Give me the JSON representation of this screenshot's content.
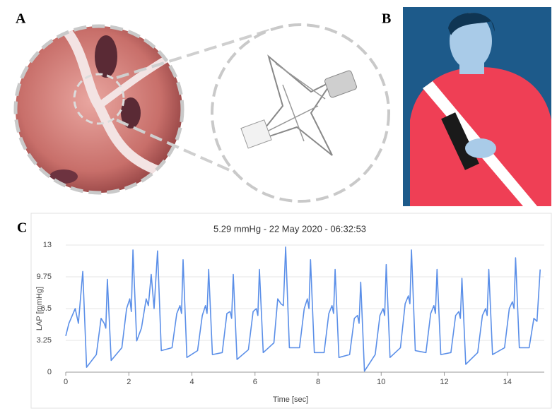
{
  "panels": {
    "a": "A",
    "b": "B",
    "c": "C"
  },
  "chart_data": {
    "type": "line",
    "title": "5.29 mmHg - 22 May 2020 - 06:32:53",
    "x_label": "Time [sec]",
    "y_label": "LAP [mmHg]",
    "xlim": [
      0,
      15.17
    ],
    "ylim": [
      0,
      13
    ],
    "xticks": [
      0,
      2,
      4,
      6,
      8,
      10,
      12,
      14
    ],
    "yticks": [
      0,
      3.25,
      6.5,
      9.75,
      13
    ],
    "grid": true,
    "series": [
      {
        "name": "LAP",
        "color": "#5b8fe8",
        "x": [
          0,
          0.1,
          0.3,
          0.4,
          0.54,
          0.66,
          0.97,
          1.12,
          1.22,
          1.27,
          1.32,
          1.44,
          1.78,
          1.93,
          2.03,
          2.08,
          2.13,
          2.25,
          2.4,
          2.55,
          2.62,
          2.71,
          2.8,
          2.91,
          3.03,
          3.37,
          3.52,
          3.62,
          3.67,
          3.72,
          3.84,
          4.18,
          4.33,
          4.43,
          4.48,
          4.53,
          4.65,
          4.96,
          5.11,
          5.21,
          5.26,
          5.31,
          5.43,
          5.79,
          5.94,
          6.04,
          6.09,
          6.14,
          6.26,
          6.6,
          6.72,
          6.82,
          6.9,
          6.97,
          7.09,
          7.41,
          7.56,
          7.66,
          7.71,
          7.76,
          7.88,
          8.19,
          8.34,
          8.44,
          8.49,
          8.54,
          8.66,
          9.0,
          9.15,
          9.25,
          9.3,
          9.35,
          9.47,
          9.81,
          9.96,
          10.06,
          10.11,
          10.16,
          10.28,
          10.61,
          10.76,
          10.86,
          10.91,
          10.96,
          11.08,
          11.42,
          11.57,
          11.67,
          11.72,
          11.77,
          11.89,
          12.21,
          12.36,
          12.46,
          12.51,
          12.56,
          12.68,
          13.06,
          13.21,
          13.31,
          13.36,
          13.41,
          13.53,
          13.91,
          14.06,
          14.16,
          14.21,
          14.26,
          14.38,
          14.69,
          14.84,
          14.94,
          15.04
        ],
        "values": [
          3.7,
          5,
          6.5,
          5,
          10.3,
          0.5,
          1.8,
          5.5,
          5,
          4.5,
          9.5,
          1.2,
          2.5,
          6.5,
          7.5,
          6.2,
          12.5,
          3.2,
          4.5,
          7.5,
          6.8,
          10,
          6.5,
          12.4,
          2.2,
          2.5,
          6,
          6.8,
          6,
          11.5,
          1.5,
          2.2,
          5.8,
          6.8,
          6,
          10.5,
          1.8,
          2,
          6,
          6.2,
          5.5,
          10,
          1.3,
          2.3,
          6.2,
          6.5,
          5.8,
          10.5,
          2,
          3,
          7.5,
          7,
          6.8,
          12.8,
          2.5,
          2.5,
          6.5,
          7.5,
          6.5,
          11.5,
          2,
          2,
          6,
          6.8,
          6,
          10.5,
          1.5,
          1.8,
          5.5,
          5.8,
          5,
          9.2,
          0.1,
          1.8,
          5.8,
          6.5,
          5.8,
          11,
          1.5,
          2.5,
          7,
          7.8,
          7,
          12.5,
          2.2,
          2,
          6,
          6.8,
          6,
          10.5,
          1.8,
          2,
          5.8,
          6.2,
          5.5,
          9.6,
          0.8,
          2,
          5.8,
          6.5,
          5.8,
          10.5,
          1.8,
          2.5,
          6.5,
          7.2,
          6.5,
          11.7,
          2.5,
          2.5,
          5.5,
          5.2,
          10.5
        ]
      }
    ]
  }
}
